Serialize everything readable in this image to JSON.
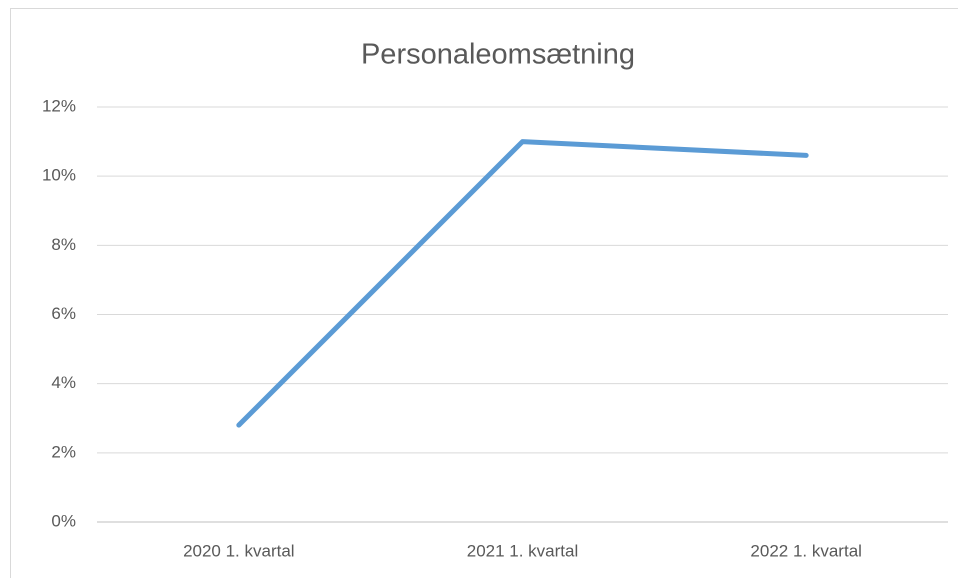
{
  "chart_data": {
    "type": "line",
    "title": "Personaleomsætning",
    "categories": [
      "2020 1. kvartal",
      "2021 1. kvartal",
      "2022 1. kvartal"
    ],
    "series": [
      {
        "name": "Personaleomsætning",
        "color": "#5b9bd5",
        "values": [
          2.8,
          11.0,
          10.6
        ]
      }
    ],
    "ylim": [
      0,
      12
    ],
    "yticks": [
      {
        "value": 0,
        "label": "0%"
      },
      {
        "value": 2,
        "label": "2%"
      },
      {
        "value": 4,
        "label": "4%"
      },
      {
        "value": 6,
        "label": "6%"
      },
      {
        "value": 8,
        "label": "8%"
      },
      {
        "value": 10,
        "label": "10%"
      },
      {
        "value": 12,
        "label": "12%"
      }
    ],
    "grid": true
  }
}
